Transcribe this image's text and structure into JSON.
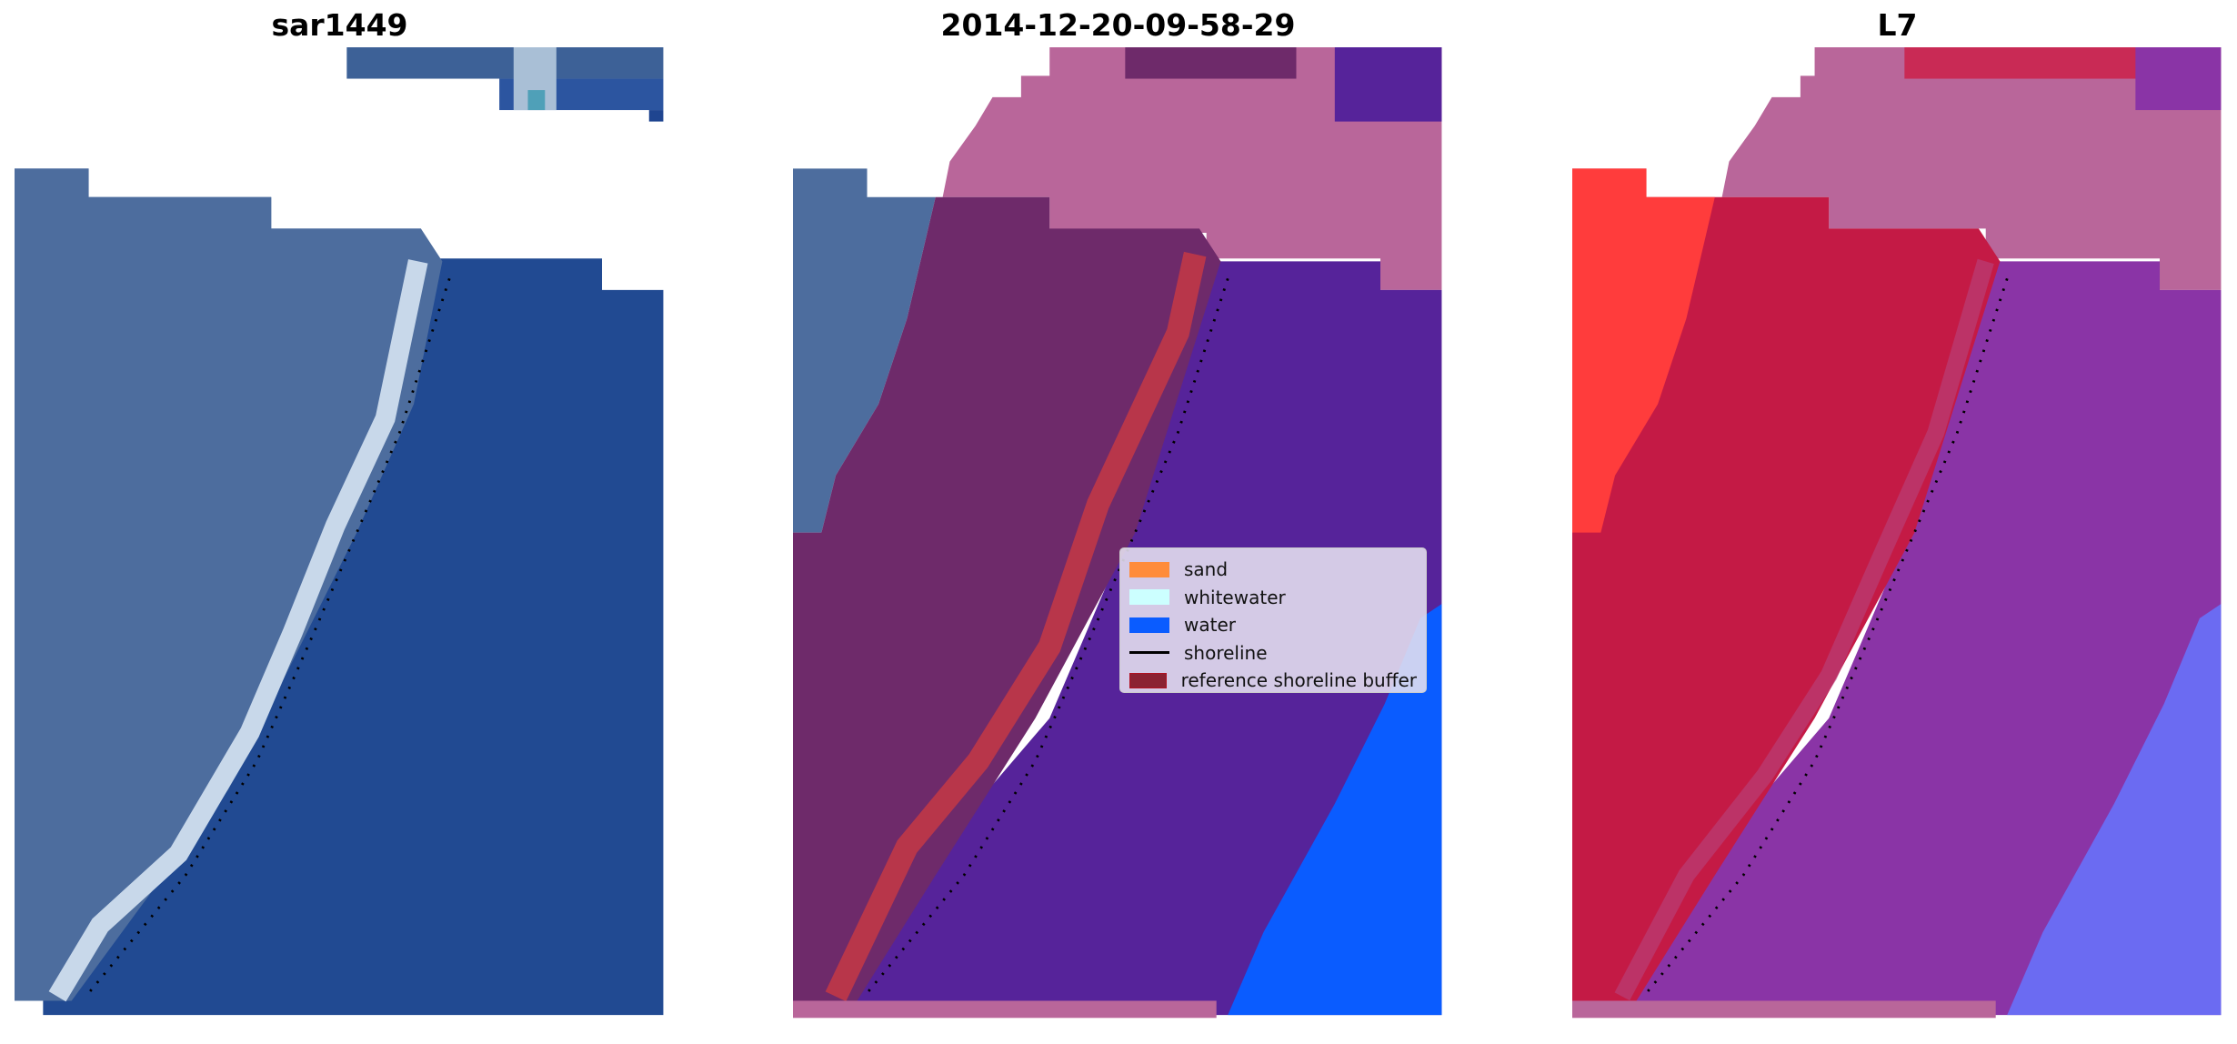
{
  "panels": [
    {
      "title": "sar1449"
    },
    {
      "title": "2014-12-20-09-58-29"
    },
    {
      "title": "L7"
    }
  ],
  "legend": {
    "items": [
      {
        "label": "sand",
        "color": "#ff8c3a",
        "kind": "patch"
      },
      {
        "label": "whitewater",
        "color": "#ccffff",
        "kind": "patch"
      },
      {
        "label": "water",
        "color": "#0a5cff",
        "kind": "patch"
      },
      {
        "label": "shoreline",
        "color": "#000000",
        "kind": "line"
      },
      {
        "label": "reference shoreline buffer",
        "color": "#8b2232",
        "kind": "patch"
      }
    ]
  },
  "colors": {
    "land_rgb": "#4d6d9e",
    "water_rgb": "#214a92",
    "sand_overlay": "#6e2a6a",
    "water_overlay": "#56239a",
    "nodata_overlay": "#b9669a",
    "buffer_overlay": "#b8364a",
    "land_false_color": "#c41a45",
    "water_false_color": "#8a34a6"
  }
}
